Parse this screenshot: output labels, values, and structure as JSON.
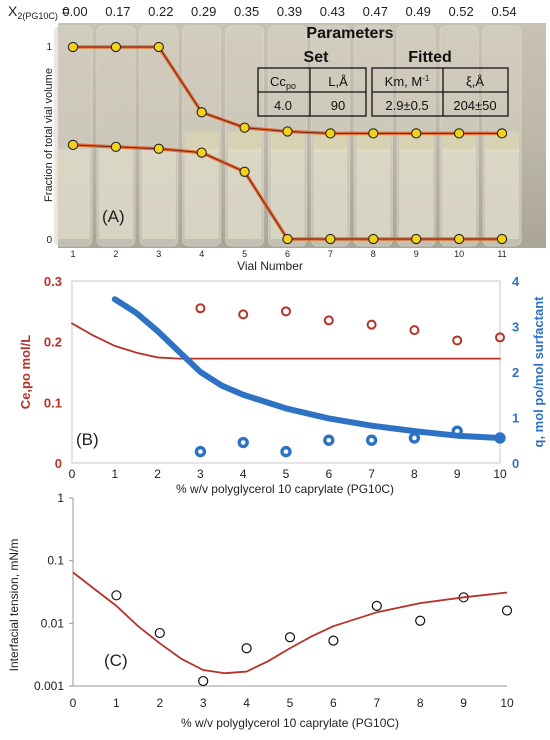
{
  "colors": {
    "red_curve": "#b5322a",
    "blue_curve": "#2e72c4",
    "marker_yellow": "#f5d21a",
    "interface_orange": "#e06a2a",
    "photo_bg": "#b9b4a6"
  },
  "panel_a": {
    "header_label": "X",
    "header_subscript": "2(PG10C)",
    "header_equals": " = ",
    "x2_values": [
      "0.00",
      "0.17",
      "0.22",
      "0.29",
      "0.35",
      "0.39",
      "0.43",
      "0.47",
      "0.49",
      "0.52",
      "0.54"
    ],
    "ylabel": "Fraction of total vial volume",
    "xlabel": "Vial Number",
    "panel_label": "(A)",
    "y_ticks": [
      "0",
      "1"
    ],
    "vial_numbers": [
      "1",
      "2",
      "3",
      "4",
      "5",
      "6",
      "7",
      "8",
      "9",
      "10",
      "11"
    ],
    "parameters": {
      "title": "Parameters",
      "set_label": "Set",
      "fitted_label": "Fitted",
      "set_headers": [
        "Cc",
        "L,Å"
      ],
      "set_header_sub": "po",
      "set_values": [
        "4.0",
        "90"
      ],
      "fitted_headers": [
        "Km, M",
        "ξ,Å"
      ],
      "fitted_header_sup": "-1",
      "fitted_values": [
        "2.9±0.5",
        "204±50"
      ]
    },
    "chart_data": {
      "type": "line",
      "x": [
        1,
        2,
        3,
        4,
        5,
        6,
        7,
        8,
        9,
        10,
        11
      ],
      "ylim": [
        0,
        1
      ],
      "series": [
        {
          "values": [
            1.0,
            1.0,
            1.0,
            0.66,
            0.58,
            0.56,
            0.55,
            0.55,
            0.55,
            0.55,
            0.55
          ]
        },
        {
          "values": [
            0.49,
            0.48,
            0.47,
            0.45,
            0.35,
            0.0,
            0.0,
            0.0,
            0.0,
            0.0,
            0.0
          ]
        }
      ]
    }
  },
  "panel_b": {
    "panel_label": "(B)",
    "xlabel": "% w/v   polyglycerol 10 caprylate (PG10C)",
    "ylabel_left": "Ce,po  mol/L",
    "ylabel_right": "q, mol po/mol surfactant",
    "x_ticks": [
      "0",
      "1",
      "2",
      "3",
      "4",
      "5",
      "6",
      "7",
      "8",
      "9",
      "10"
    ],
    "y_left_ticks": [
      "0",
      "0.1",
      "0.2",
      "0.3"
    ],
    "y_right_ticks": [
      "0",
      "1",
      "2",
      "3",
      "4"
    ],
    "chart_data": {
      "type": "line",
      "xlim": [
        0,
        10
      ],
      "ylim_left": [
        0,
        0.3
      ],
      "ylim_right": [
        0,
        4
      ],
      "series": [
        {
          "axis": "left",
          "kind": "points",
          "x": [
            3,
            4,
            5,
            6,
            7,
            8,
            9,
            10
          ],
          "values": [
            0.255,
            0.245,
            0.25,
            0.235,
            0.228,
            0.219,
            0.202,
            0.207
          ]
        },
        {
          "axis": "left",
          "kind": "line",
          "x": [
            0,
            0.5,
            1,
            1.5,
            2,
            2.5,
            3,
            4,
            5,
            6,
            7,
            8,
            9,
            10
          ],
          "values": [
            0.23,
            0.21,
            0.193,
            0.182,
            0.174,
            0.172,
            0.172,
            0.172,
            0.172,
            0.172,
            0.172,
            0.172,
            0.172,
            0.172
          ]
        },
        {
          "axis": "right",
          "kind": "points",
          "x": [
            3,
            4,
            5,
            6,
            7,
            8,
            9,
            10
          ],
          "values": [
            0.25,
            0.45,
            0.25,
            0.5,
            0.5,
            0.55,
            0.7,
            0.55
          ]
        },
        {
          "axis": "right",
          "kind": "line",
          "x": [
            1,
            1.5,
            2,
            2.5,
            3,
            3.5,
            4,
            5,
            6,
            7,
            8,
            9,
            10
          ],
          "values": [
            3.6,
            3.3,
            2.9,
            2.45,
            2.0,
            1.7,
            1.5,
            1.2,
            0.98,
            0.82,
            0.7,
            0.6,
            0.55
          ]
        }
      ]
    }
  },
  "panel_c": {
    "panel_label": "(C)",
    "xlabel": "% w/v   polyglycerol 10 caprylate (PG10C)",
    "ylabel": "Interfacial tension, mN/m",
    "x_ticks": [
      "0",
      "1",
      "2",
      "3",
      "4",
      "5",
      "6",
      "7",
      "8",
      "9",
      "10"
    ],
    "y_ticks": [
      "0.001",
      "0.01",
      "0.1",
      "1"
    ],
    "chart_data": {
      "type": "scatter",
      "y_scale": "log",
      "xlim": [
        0,
        10
      ],
      "ylim": [
        0.001,
        1
      ],
      "series": [
        {
          "kind": "points",
          "x": [
            1,
            2,
            3,
            4,
            5,
            6,
            7,
            8,
            9,
            10
          ],
          "values": [
            0.028,
            0.007,
            0.0012,
            0.004,
            0.006,
            0.0053,
            0.019,
            0.011,
            0.026,
            0.016
          ]
        },
        {
          "kind": "line",
          "x": [
            0,
            0.5,
            1,
            1.5,
            2,
            2.5,
            3,
            3.5,
            4,
            4.5,
            5,
            5.5,
            6,
            7,
            8,
            9,
            10
          ],
          "values": [
            0.065,
            0.035,
            0.019,
            0.009,
            0.0048,
            0.0027,
            0.0018,
            0.0016,
            0.0017,
            0.0025,
            0.004,
            0.0062,
            0.009,
            0.015,
            0.021,
            0.026,
            0.031
          ]
        }
      ]
    }
  }
}
